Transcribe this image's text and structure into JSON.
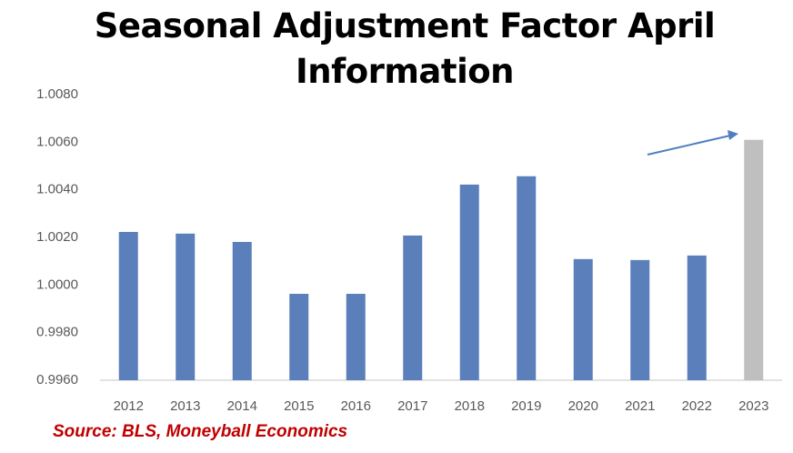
{
  "chart_data": {
    "type": "bar",
    "title": "Seasonal Adjustment Factor April Information",
    "categories": [
      "2012",
      "2013",
      "2014",
      "2015",
      "2016",
      "2017",
      "2018",
      "2019",
      "2020",
      "2021",
      "2022",
      "2023"
    ],
    "values": [
      1.00223,
      1.00216,
      1.00181,
      0.99963,
      0.99963,
      1.00208,
      1.00422,
      1.00457,
      1.00109,
      1.00105,
      1.00124,
      1.0061
    ],
    "colors": [
      "#5b7fbb",
      "#5b7fbb",
      "#5b7fbb",
      "#5b7fbb",
      "#5b7fbb",
      "#5b7fbb",
      "#5b7fbb",
      "#5b7fbb",
      "#5b7fbb",
      "#5b7fbb",
      "#5b7fbb",
      "#bfbfbf"
    ],
    "ylim": [
      0.996,
      1.008
    ],
    "yticks": [
      {
        "value": 0.996,
        "label": "0.9960"
      },
      {
        "value": 0.998,
        "label": "0.9980"
      },
      {
        "value": 1,
        "label": "1.0000"
      },
      {
        "value": 1.002,
        "label": "1.0020"
      },
      {
        "value": 1.004,
        "label": "1.0040"
      },
      {
        "value": 1.006,
        "label": "1.0060"
      },
      {
        "value": 1.008,
        "label": "1.0080"
      }
    ],
    "grid": false,
    "annotation": "Source: BLS, Moneyball Economics"
  }
}
